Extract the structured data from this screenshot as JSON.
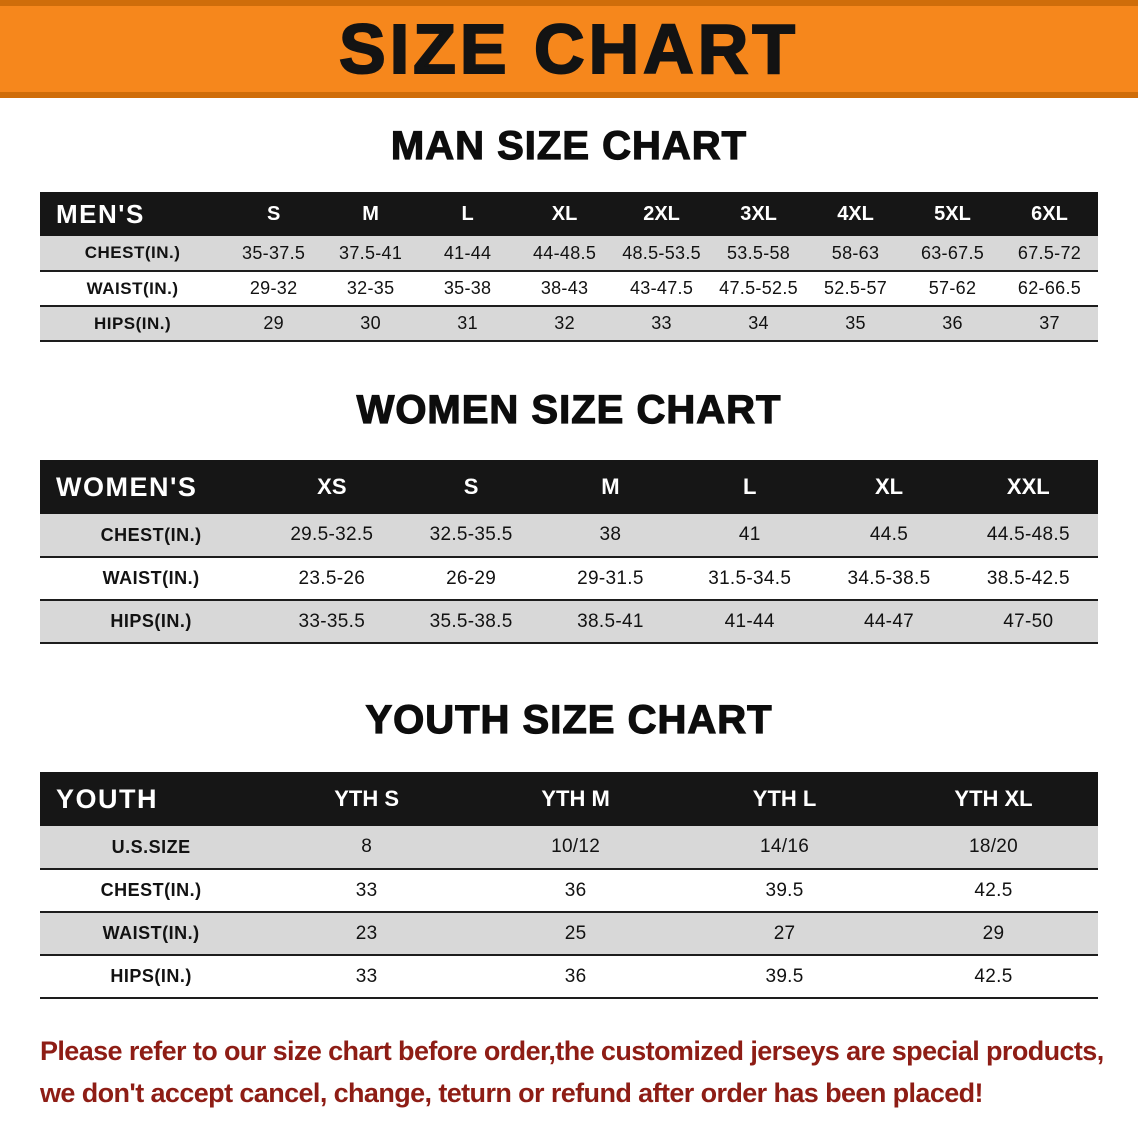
{
  "banner": {
    "title": "SIZE CHART"
  },
  "colors": {
    "banner-bg": "#f6871c",
    "banner-edge": "#cf6d0a",
    "header-bg": "#161616",
    "row-shade": "#d8d8d8",
    "disclaimer-color": "#8e1d15"
  },
  "sections": [
    {
      "title": "MAN SIZE CHART",
      "header_label": "MEN'S",
      "columns": [
        "S",
        "M",
        "L",
        "XL",
        "2XL",
        "3XL",
        "4XL",
        "5XL",
        "6XL"
      ],
      "rows": [
        {
          "label": "CHEST(IN.)",
          "values": [
            "35-37.5",
            "37.5-41",
            "41-44",
            "44-48.5",
            "48.5-53.5",
            "53.5-58",
            "58-63",
            "63-67.5",
            "67.5-72"
          ]
        },
        {
          "label": "WAIST(IN.)",
          "values": [
            "29-32",
            "32-35",
            "35-38",
            "38-43",
            "43-47.5",
            "47.5-52.5",
            "52.5-57",
            "57-62",
            "62-66.5"
          ]
        },
        {
          "label": "HIPS(IN.)",
          "values": [
            "29",
            "30",
            "31",
            "32",
            "33",
            "34",
            "35",
            "36",
            "37"
          ]
        }
      ]
    },
    {
      "title": "WOMEN SIZE CHART",
      "header_label": "WOMEN'S",
      "columns": [
        "XS",
        "S",
        "M",
        "L",
        "XL",
        "XXL"
      ],
      "rows": [
        {
          "label": "CHEST(IN.)",
          "values": [
            "29.5-32.5",
            "32.5-35.5",
            "38",
            "41",
            "44.5",
            "44.5-48.5"
          ]
        },
        {
          "label": "WAIST(IN.)",
          "values": [
            "23.5-26",
            "26-29",
            "29-31.5",
            "31.5-34.5",
            "34.5-38.5",
            "38.5-42.5"
          ]
        },
        {
          "label": "HIPS(IN.)",
          "values": [
            "33-35.5",
            "35.5-38.5",
            "38.5-41",
            "41-44",
            "44-47",
            "47-50"
          ]
        }
      ]
    },
    {
      "title": "YOUTH SIZE CHART",
      "header_label": "YOUTH",
      "columns": [
        "YTH S",
        "YTH M",
        "YTH L",
        "YTH XL"
      ],
      "rows": [
        {
          "label": "U.S.SIZE",
          "values": [
            "8",
            "10/12",
            "14/16",
            "18/20"
          ]
        },
        {
          "label": "CHEST(IN.)",
          "values": [
            "33",
            "36",
            "39.5",
            "42.5"
          ]
        },
        {
          "label": "WAIST(IN.)",
          "values": [
            "23",
            "25",
            "27",
            "29"
          ]
        },
        {
          "label": "HIPS(IN.)",
          "values": [
            "33",
            "36",
            "39.5",
            "42.5"
          ]
        }
      ]
    }
  ],
  "disclaimer": {
    "line1": "Please refer to our size chart before order,the customized jerseys are special products,",
    "line2": "we don't accept cancel, change, teturn or refund after order has been placed!"
  }
}
